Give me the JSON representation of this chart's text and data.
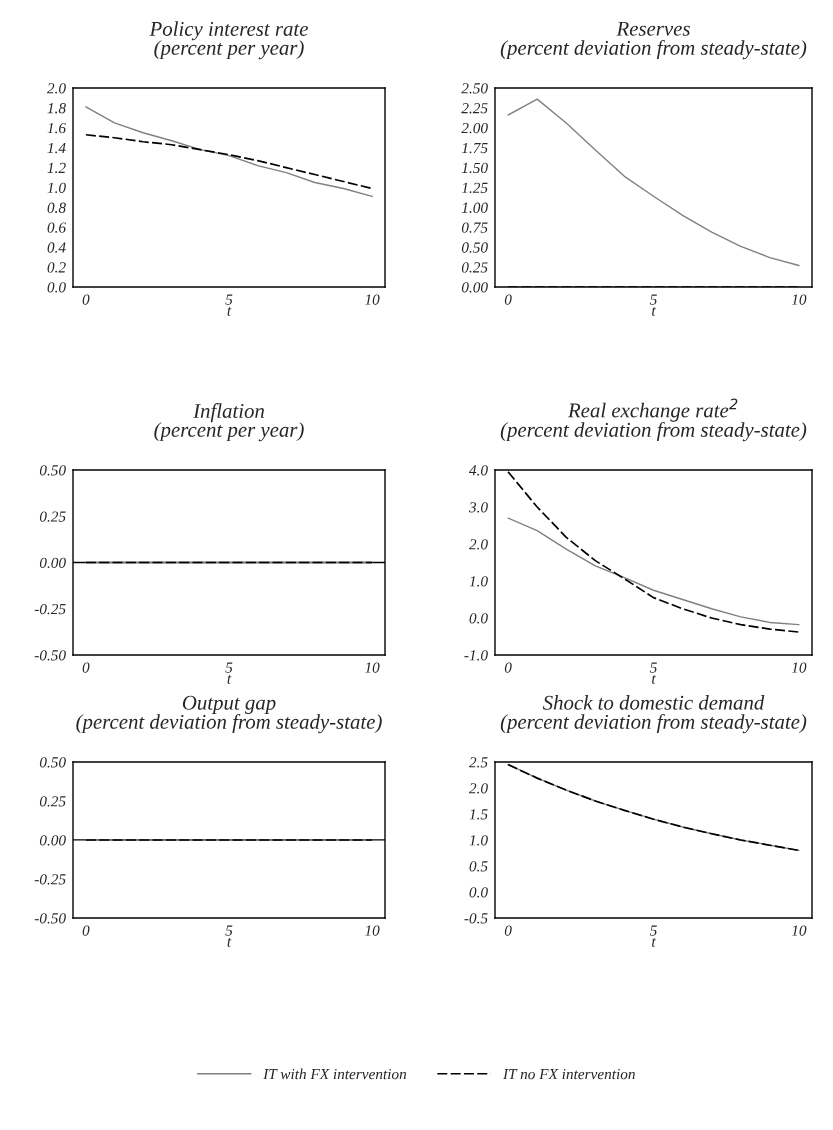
{
  "chart_data": [
    {
      "type": "line",
      "title": "Policy interest rate\n(percent per year)",
      "legend": "bottom",
      "xlabel": "t",
      "x": [
        0,
        1,
        2,
        3,
        4,
        5,
        6,
        7,
        8,
        9,
        10
      ],
      "xlim": [
        -0.45,
        10.45
      ],
      "xticks": [
        0,
        5,
        10
      ],
      "ylim": [
        0.0,
        2.0
      ],
      "yticks": [
        {
          "value": 0.0,
          "label": "0.0"
        },
        {
          "value": 0.2,
          "label": "0.2"
        },
        {
          "value": 0.4,
          "label": "0.4"
        },
        {
          "value": 0.6,
          "label": "0.6"
        },
        {
          "value": 0.8,
          "label": "0.8"
        },
        {
          "value": 1.0,
          "label": "1.0"
        },
        {
          "value": 1.2,
          "label": "1.2"
        },
        {
          "value": 1.4,
          "label": "1.4"
        },
        {
          "value": 1.6,
          "label": "1.6"
        },
        {
          "value": 1.8,
          "label": "1.8"
        },
        {
          "value": 2.0,
          "label": "2.0"
        }
      ],
      "grid": false,
      "series": [
        {
          "name": "IT with FX intervention",
          "color": "#808080",
          "line_style": "solid",
          "values": [
            1.81,
            1.65,
            1.55,
            1.47,
            1.38,
            1.32,
            1.22,
            1.15,
            1.05,
            0.99,
            0.91
          ]
        },
        {
          "name": "IT no FX intervention",
          "color": "#000000",
          "line_style": "dashed",
          "values": [
            1.53,
            1.5,
            1.46,
            1.43,
            1.38,
            1.33,
            1.27,
            1.2,
            1.13,
            1.06,
            0.99
          ]
        }
      ]
    },
    {
      "type": "line",
      "title": "Reserves\n(percent deviation from steady-state)",
      "xlabel": "t",
      "x": [
        0,
        1,
        2,
        3,
        4,
        5,
        6,
        7,
        8,
        9,
        10
      ],
      "xlim": [
        -0.45,
        10.45
      ],
      "xticks": [
        0,
        5,
        10
      ],
      "ylim": [
        0.0,
        2.5
      ],
      "yticks": [
        {
          "value": 0.0,
          "label": "0.00"
        },
        {
          "value": 0.25,
          "label": "0.25"
        },
        {
          "value": 0.5,
          "label": "0.50"
        },
        {
          "value": 0.75,
          "label": "0.75"
        },
        {
          "value": 1.0,
          "label": "1.00"
        },
        {
          "value": 1.25,
          "label": "1.25"
        },
        {
          "value": 1.5,
          "label": "1.50"
        },
        {
          "value": 1.75,
          "label": "1.75"
        },
        {
          "value": 2.0,
          "label": "2.00"
        },
        {
          "value": 2.25,
          "label": "2.25"
        },
        {
          "value": 2.5,
          "label": "2.50"
        }
      ],
      "grid": false,
      "series": [
        {
          "color": "#808080",
          "line_style": "solid",
          "values": [
            2.16,
            2.36,
            2.06,
            1.72,
            1.39,
            1.14,
            0.9,
            0.69,
            0.51,
            0.37,
            0.27
          ]
        },
        {
          "color": "#000000",
          "line_style": "dashed",
          "values": [
            0,
            0,
            0,
            0,
            0,
            0,
            0,
            0,
            0,
            0,
            0
          ]
        }
      ]
    },
    {
      "type": "line",
      "title": "Inflation\n(percent per year)",
      "xlabel": "t",
      "x": [
        0,
        1,
        2,
        3,
        4,
        5,
        6,
        7,
        8,
        9,
        10
      ],
      "xlim": [
        -0.45,
        10.45
      ],
      "xticks": [
        0,
        5,
        10
      ],
      "ylim": [
        -0.5,
        0.5
      ],
      "yticks": [
        {
          "value": -0.5,
          "label": "-0.50"
        },
        {
          "value": -0.25,
          "label": "-0.25"
        },
        {
          "value": 0.0,
          "label": "0.00"
        },
        {
          "value": 0.25,
          "label": "0.25"
        },
        {
          "value": 0.5,
          "label": "0.50"
        }
      ],
      "grid": false,
      "ref_lines": [
        {
          "axis": "y",
          "value": 0,
          "color": "#000000"
        }
      ],
      "series": [
        {
          "color": "#808080",
          "line_style": "solid",
          "values": [
            0,
            0,
            0,
            0,
            0,
            0,
            0,
            0,
            0,
            0,
            0
          ]
        },
        {
          "color": "#000000",
          "line_style": "dashed",
          "values": [
            0,
            0,
            0,
            0,
            0,
            0,
            0,
            0,
            0,
            0,
            0
          ]
        }
      ]
    },
    {
      "type": "line",
      "title": "Real exchange rate$^{2}$\n(percent deviation from steady-state)",
      "xlabel": "t",
      "x": [
        0,
        1,
        2,
        3,
        4,
        5,
        6,
        7,
        8,
        9,
        10
      ],
      "xlim": [
        -0.45,
        10.45
      ],
      "xticks": [
        0,
        5,
        10
      ],
      "ylim": [
        -1.0,
        4.0
      ],
      "yticks": [
        {
          "value": -1.0,
          "label": "-1.0"
        },
        {
          "value": 0.0,
          "label": "0.0"
        },
        {
          "value": 1.0,
          "label": "1.0"
        },
        {
          "value": 2.0,
          "label": "2.0"
        },
        {
          "value": 3.0,
          "label": "3.0"
        },
        {
          "value": 4.0,
          "label": "4.0"
        }
      ],
      "grid": false,
      "series": [
        {
          "color": "#808080",
          "line_style": "solid",
          "values": [
            2.7,
            2.36,
            1.86,
            1.41,
            1.09,
            0.75,
            0.5,
            0.25,
            0.03,
            -0.12,
            -0.18
          ]
        },
        {
          "color": "#000000",
          "line_style": "dashed",
          "values": [
            3.95,
            3.0,
            2.18,
            1.55,
            1.06,
            0.55,
            0.25,
            0.0,
            -0.18,
            -0.3,
            -0.38
          ]
        }
      ]
    },
    {
      "type": "line",
      "title": "Output gap\n(percent deviation from steady-state)",
      "xlabel": "t",
      "x": [
        0,
        1,
        2,
        3,
        4,
        5,
        6,
        7,
        8,
        9,
        10
      ],
      "xlim": [
        -0.45,
        10.45
      ],
      "xticks": [
        0,
        5,
        10
      ],
      "ylim": [
        -0.5,
        0.5
      ],
      "yticks": [
        {
          "value": -0.5,
          "label": "-0.50"
        },
        {
          "value": -0.25,
          "label": "-0.25"
        },
        {
          "value": 0.0,
          "label": "0.00"
        },
        {
          "value": 0.25,
          "label": "0.25"
        },
        {
          "value": 0.5,
          "label": "0.50"
        }
      ],
      "grid": false,
      "ref_lines": [
        {
          "axis": "y",
          "value": 0,
          "color": "#000000"
        }
      ],
      "series": [
        {
          "color": "#808080",
          "line_style": "solid",
          "values": [
            0,
            0,
            0,
            0,
            0,
            0,
            0,
            0,
            0,
            0,
            0
          ]
        },
        {
          "color": "#000000",
          "line_style": "dashed",
          "values": [
            0,
            0,
            0,
            0,
            0,
            0,
            0,
            0,
            0,
            0,
            0
          ]
        }
      ]
    },
    {
      "type": "line",
      "title": "Shock to domestic demand\n(percent deviation from steady-state)",
      "xlabel": "t",
      "x": [
        0,
        1,
        2,
        3,
        4,
        5,
        6,
        7,
        8,
        9,
        10
      ],
      "xlim": [
        -0.45,
        10.45
      ],
      "xticks": [
        0,
        5,
        10
      ],
      "ylim": [
        -0.5,
        2.5
      ],
      "yticks": [
        {
          "value": -0.5,
          "label": "-0.5"
        },
        {
          "value": 0.0,
          "label": "0.0"
        },
        {
          "value": 0.5,
          "label": "0.5"
        },
        {
          "value": 1.0,
          "label": "1.0"
        },
        {
          "value": 1.5,
          "label": "1.5"
        },
        {
          "value": 2.0,
          "label": "2.0"
        },
        {
          "value": 2.5,
          "label": "2.5"
        }
      ],
      "grid": false,
      "series": [
        {
          "color": "#808080",
          "line_style": "solid",
          "values": [
            2.45,
            2.19,
            1.96,
            1.75,
            1.57,
            1.4,
            1.25,
            1.12,
            1.0,
            0.9,
            0.8
          ]
        },
        {
          "color": "#000000",
          "line_style": "dashed",
          "values": [
            2.45,
            2.19,
            1.96,
            1.75,
            1.57,
            1.4,
            1.25,
            1.12,
            1.0,
            0.9,
            0.8
          ]
        }
      ]
    }
  ]
}
